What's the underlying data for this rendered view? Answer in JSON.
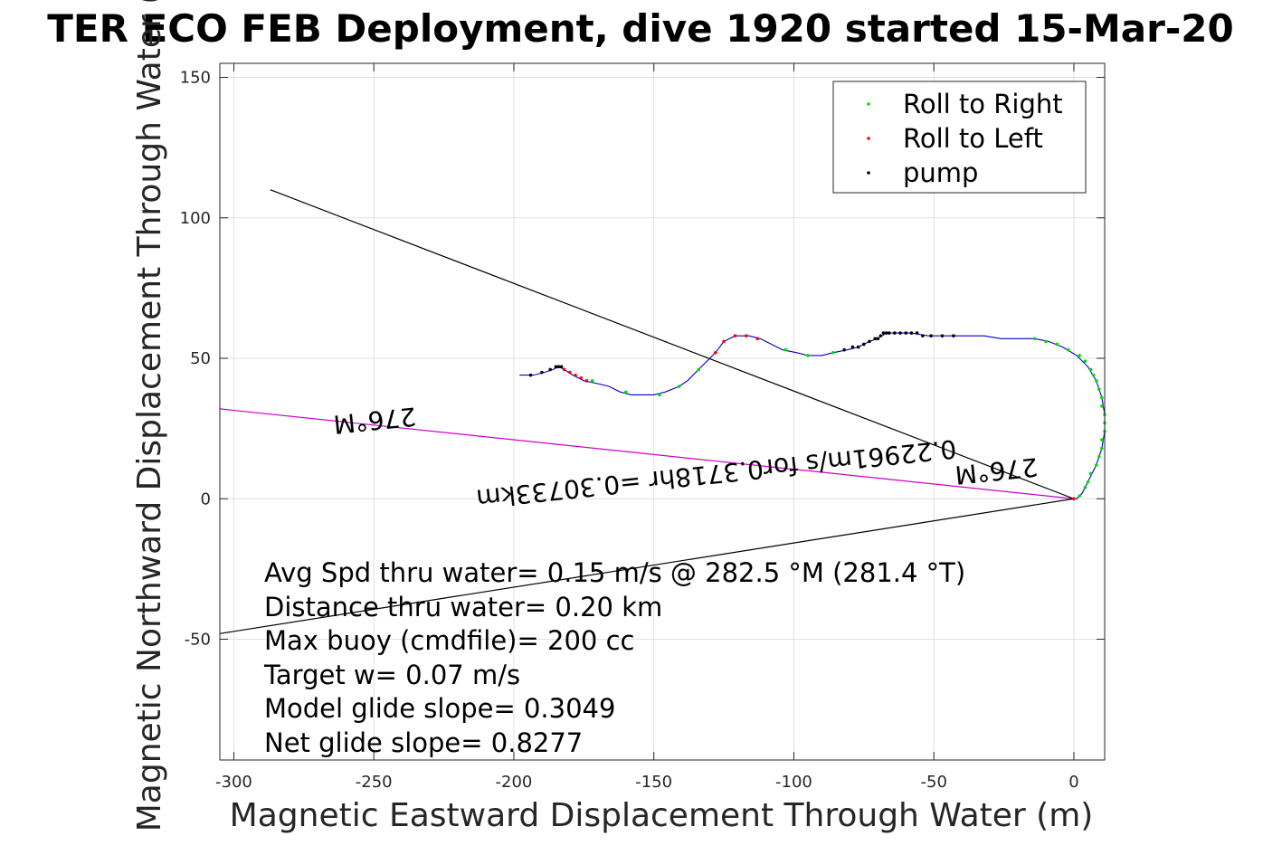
{
  "chart_data": {
    "type": "line",
    "title": "TER ECO FEB Deployment, dive 1920 started 15-Mar-20",
    "xlabel": "Magnetic Eastward Displacement Through Water (m)",
    "ylabel": "Magnetic Northward Displacement Through Water (",
    "xlim": [
      -305,
      11
    ],
    "ylim": [
      -93,
      155
    ],
    "xticks": [
      -300,
      -250,
      -200,
      -150,
      -100,
      -50,
      0
    ],
    "yticks": [
      -50,
      0,
      50,
      100,
      150
    ],
    "grid": true,
    "legend_position": "top-right",
    "legend": [
      {
        "name": "Roll to Right",
        "color": "#00dd00"
      },
      {
        "name": "Roll to Left",
        "color": "#ff0000"
      },
      {
        "name": "pump",
        "color": "#000000"
      }
    ],
    "track": {
      "color": "#0000cc",
      "points": [
        [
          -198,
          44
        ],
        [
          -193,
          44
        ],
        [
          -189,
          45
        ],
        [
          -186,
          46
        ],
        [
          -184,
          47
        ],
        [
          -182,
          46
        ],
        [
          -179,
          44
        ],
        [
          -175,
          42
        ],
        [
          -170,
          41
        ],
        [
          -166,
          40
        ],
        [
          -162,
          38
        ],
        [
          -158,
          37
        ],
        [
          -154,
          37
        ],
        [
          -150,
          37
        ],
        [
          -146,
          38
        ],
        [
          -141,
          40
        ],
        [
          -138,
          42
        ],
        [
          -134,
          46
        ],
        [
          -131,
          49
        ],
        [
          -128,
          52
        ],
        [
          -125,
          56
        ],
        [
          -121,
          58
        ],
        [
          -116,
          58
        ],
        [
          -112,
          57
        ],
        [
          -108,
          55
        ],
        [
          -104,
          53
        ],
        [
          -99,
          52
        ],
        [
          -95,
          51
        ],
        [
          -90,
          51
        ],
        [
          -86,
          52
        ],
        [
          -81,
          53
        ],
        [
          -77,
          54
        ],
        [
          -73,
          56
        ],
        [
          -70,
          57
        ],
        [
          -67,
          59
        ],
        [
          -63,
          59
        ],
        [
          -58,
          59
        ],
        [
          -52,
          58
        ],
        [
          -45,
          58
        ],
        [
          -38,
          58
        ],
        [
          -32,
          58
        ],
        [
          -26,
          57
        ],
        [
          -20,
          57
        ],
        [
          -14,
          57
        ],
        [
          -9,
          56
        ],
        [
          -4,
          54
        ],
        [
          1,
          51
        ],
        [
          5,
          47
        ],
        [
          8,
          42
        ],
        [
          10,
          36
        ],
        [
          11,
          30
        ],
        [
          11,
          24
        ],
        [
          10,
          18
        ],
        [
          8,
          12
        ],
        [
          5,
          6
        ],
        [
          3,
          2
        ],
        [
          1,
          0
        ],
        [
          0,
          0
        ]
      ]
    },
    "roll_right_points": [
      [
        -172,
        42
      ],
      [
        -160,
        38
      ],
      [
        -148,
        37
      ],
      [
        -141,
        40
      ],
      [
        -134,
        46
      ],
      [
        -103,
        53
      ],
      [
        -95,
        51
      ],
      [
        -86,
        52
      ],
      [
        -14,
        57
      ],
      [
        -10,
        56
      ],
      [
        -6,
        55
      ],
      [
        -2,
        53
      ],
      [
        2,
        51
      ],
      [
        4,
        49
      ],
      [
        6,
        46
      ],
      [
        7,
        44
      ],
      [
        8,
        42
      ],
      [
        9,
        39
      ],
      [
        10,
        36
      ],
      [
        10,
        33
      ],
      [
        11,
        30
      ],
      [
        11,
        27
      ],
      [
        11,
        24
      ],
      [
        10,
        21
      ],
      [
        10,
        18
      ],
      [
        9,
        15
      ],
      [
        8,
        12
      ],
      [
        6,
        9
      ],
      [
        5,
        6
      ],
      [
        4,
        4
      ],
      [
        2,
        1
      ]
    ],
    "roll_left_points": [
      [
        -182,
        46
      ],
      [
        -180,
        45
      ],
      [
        -178,
        44
      ],
      [
        -176,
        43
      ],
      [
        -174,
        42
      ],
      [
        -128,
        52
      ],
      [
        -125,
        56
      ],
      [
        -121,
        58
      ],
      [
        -117,
        58
      ],
      [
        -113,
        57
      ],
      [
        0,
        0
      ]
    ],
    "pump_points": [
      [
        -194,
        44
      ],
      [
        -190,
        45
      ],
      [
        -187,
        46
      ],
      [
        -185,
        47
      ],
      [
        -184,
        47
      ],
      [
        -183,
        47
      ],
      [
        -82,
        53
      ],
      [
        -79,
        54
      ],
      [
        -77,
        54
      ],
      [
        -75,
        55
      ],
      [
        -73,
        56
      ],
      [
        -71,
        57
      ],
      [
        -70,
        57
      ],
      [
        -69,
        58
      ],
      [
        -68,
        59
      ],
      [
        -67,
        59
      ],
      [
        -66,
        59
      ],
      [
        -64,
        59
      ],
      [
        -62,
        59
      ],
      [
        -60,
        59
      ],
      [
        -58,
        59
      ],
      [
        -56,
        59
      ],
      [
        -54,
        58
      ],
      [
        -51,
        58
      ],
      [
        -47,
        58
      ],
      [
        -43,
        58
      ]
    ],
    "lines": [
      {
        "name": "heading-line-276",
        "color": "#cc00cc",
        "from": [
          0,
          0
        ],
        "to": [
          -305,
          32
        ]
      },
      {
        "name": "black-line-upper",
        "color": "#000000",
        "from": [
          0,
          0
        ],
        "to": [
          -287,
          110
        ]
      },
      {
        "name": "black-line-lower",
        "color": "#000000",
        "from": [
          0,
          0
        ],
        "to": [
          -305,
          -48
        ]
      }
    ],
    "annotations": [
      {
        "text": "276°M",
        "at": [
          -250,
          31
        ],
        "rotation": 174
      },
      {
        "text": "0.22961m/s for0.3718hr =0.30733km",
        "at": [
          -128,
          12
        ],
        "rotation": 174
      },
      {
        "text": "276°M",
        "at": [
          -28,
          13
        ],
        "rotation": 174
      }
    ],
    "stats": [
      "Avg Spd thru water=  0.15 m/s @ 282.5 °M (281.4 °T)",
      "Distance thru water=  0.20 km",
      "Max buoy (cmdfile)= 200 cc",
      "Target w= 0.07 m/s",
      "Model glide slope= 0.3049",
      "Net glide slope= 0.8277"
    ]
  }
}
